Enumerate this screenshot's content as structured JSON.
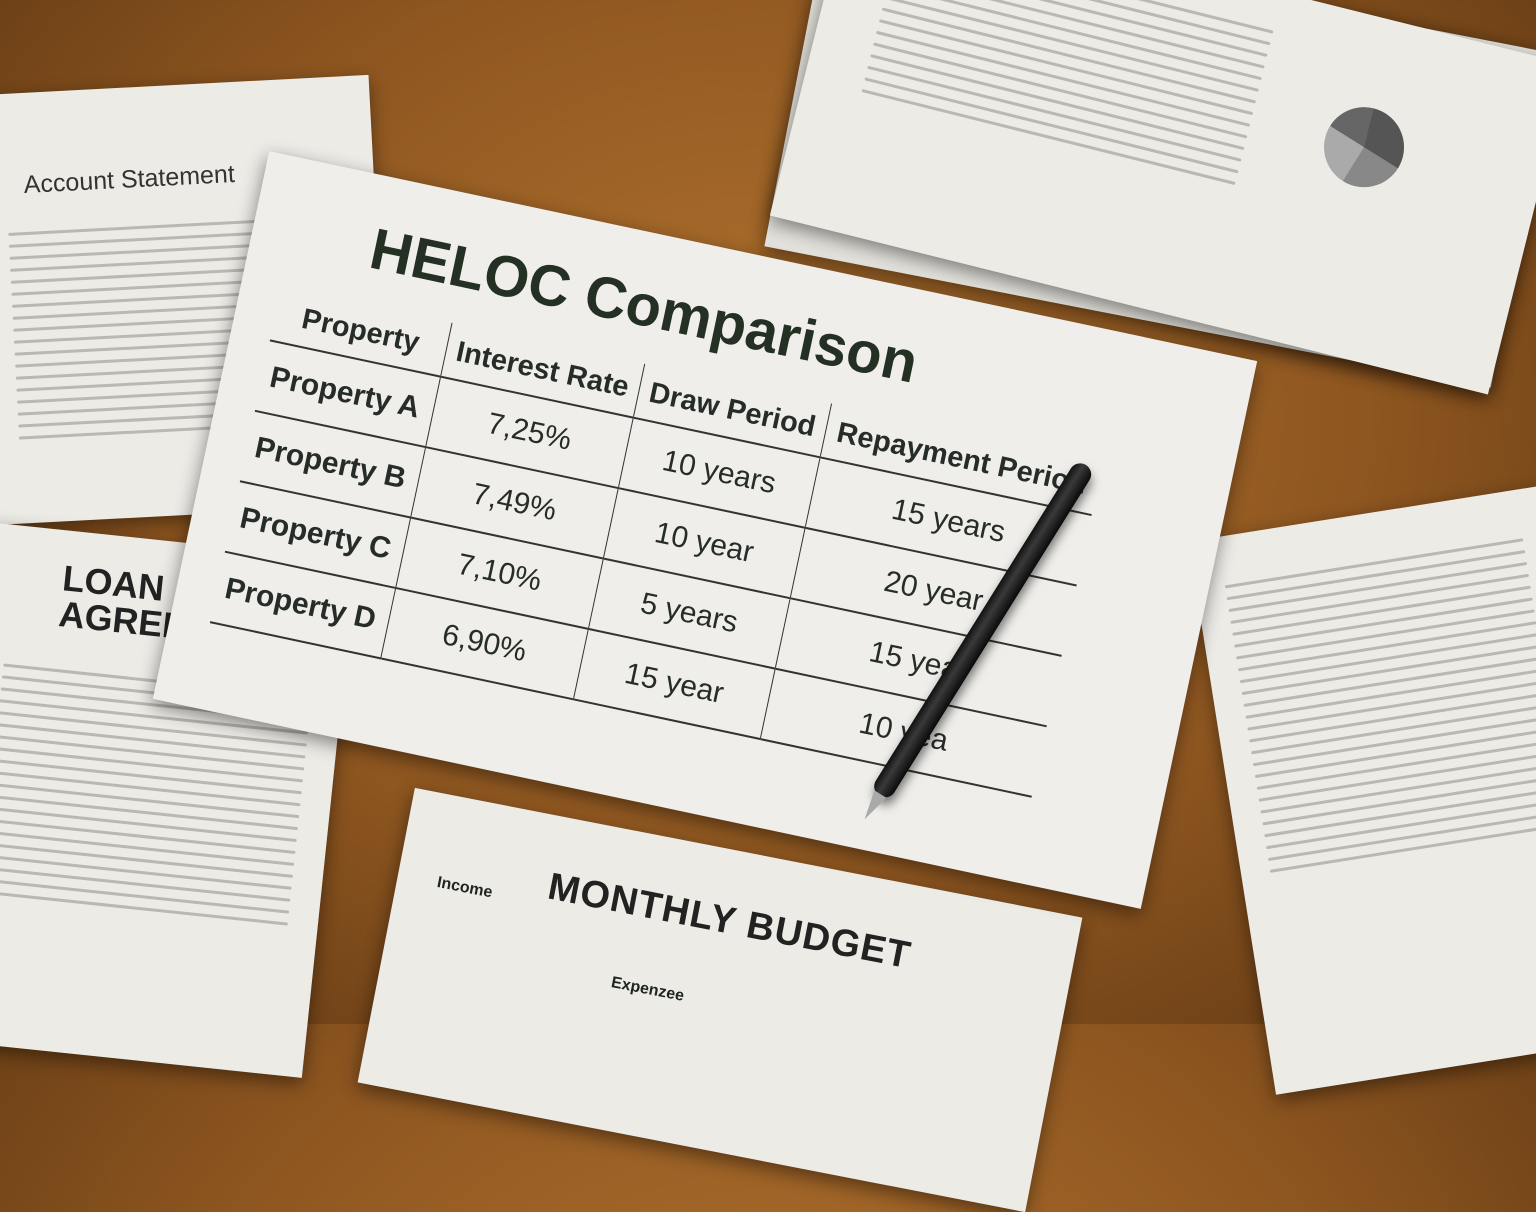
{
  "main_document": {
    "title": "HELOC Comparison",
    "columns": [
      "Property",
      "Interest Rate",
      "Draw Period",
      "Repayment Period"
    ],
    "rows": [
      [
        "Property A",
        "7,25%",
        "10 years",
        "15 years"
      ],
      [
        "Property B",
        "7,49%",
        "10 year",
        "20 year"
      ],
      [
        "Property C",
        "7,10%",
        "5 years",
        "15 year"
      ],
      [
        "Property D",
        "6,90%",
        "15 year",
        "10 yea"
      ]
    ]
  },
  "other_documents": {
    "account_statement": "Account Statement",
    "loan_agreement": "LOAN AGREE",
    "monthly_budget": {
      "title": "MONTHLY BUDGET",
      "income": "Income",
      "expenses": "Expenzee"
    }
  },
  "colors": {
    "desk": "#8e5620",
    "paper": "#efeeea",
    "ink": "#243024"
  }
}
